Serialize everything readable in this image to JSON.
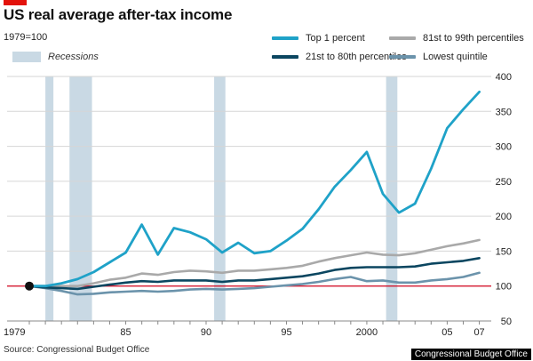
{
  "header": {
    "title": "US real average after-tax income",
    "subtitle": "1979=100"
  },
  "legend": {
    "recessions_label": "Recessions",
    "recession_color": "#c9d9e4"
  },
  "footer": {
    "source": "Source: Congressional Budget Office",
    "credit": "Congressional Budget Office"
  },
  "chart_data": {
    "type": "line",
    "title": "US real average after-tax income",
    "subtitle": "1979=100",
    "xlabel": "",
    "ylabel": "",
    "xlim": [
      1979,
      2007.3
    ],
    "ylim": [
      50,
      400
    ],
    "yticks": [
      50,
      100,
      150,
      200,
      250,
      300,
      350,
      400
    ],
    "xticks": [
      {
        "value": 1979,
        "label": "1979"
      },
      {
        "value": 1985,
        "label": "85"
      },
      {
        "value": 1990,
        "label": "90"
      },
      {
        "value": 1995,
        "label": "95"
      },
      {
        "value": 2000,
        "label": "2000"
      },
      {
        "value": 2005,
        "label": "05"
      },
      {
        "value": 2007,
        "label": "07"
      }
    ],
    "recessions": [
      [
        1980.0,
        1980.5
      ],
      [
        1981.5,
        1982.9
      ],
      [
        1990.5,
        1991.2
      ],
      [
        2001.2,
        2001.9
      ]
    ],
    "start_marker": {
      "x": 1979,
      "y": 100
    },
    "x": [
      1979,
      1980,
      1981,
      1982,
      1983,
      1984,
      1985,
      1986,
      1987,
      1988,
      1989,
      1990,
      1991,
      1992,
      1993,
      1994,
      1995,
      1996,
      1997,
      1998,
      1999,
      2000,
      2001,
      2002,
      2003,
      2004,
      2005,
      2006,
      2007
    ],
    "series": [
      {
        "name": "Top 1 percent",
        "color": "#1fa2c8",
        "width": 2.8,
        "values": [
          100,
          100,
          104,
          110,
          120,
          134,
          148,
          188,
          145,
          183,
          177,
          167,
          148,
          162,
          147,
          150,
          165,
          182,
          210,
          242,
          266,
          292,
          232,
          205,
          218,
          268,
          326,
          353,
          378
        ]
      },
      {
        "name": "81st to 99th percentiles",
        "color": "#a9a9a9",
        "width": 2.6,
        "values": [
          100,
          99,
          100,
          100,
          104,
          109,
          112,
          118,
          116,
          120,
          122,
          121,
          119,
          122,
          122,
          124,
          126,
          129,
          135,
          140,
          144,
          148,
          145,
          144,
          147,
          152,
          157,
          161,
          166
        ]
      },
      {
        "name": "21st to 80th percentiles",
        "color": "#0b4660",
        "width": 2.6,
        "values": [
          100,
          98,
          97,
          96,
          99,
          102,
          105,
          107,
          106,
          108,
          108,
          108,
          106,
          108,
          108,
          110,
          112,
          114,
          118,
          123,
          126,
          127,
          127,
          127,
          128,
          132,
          134,
          136,
          140
        ]
      },
      {
        "name": "Lowest quintile",
        "color": "#6b93ab",
        "width": 2.6,
        "values": [
          100,
          97,
          93,
          88,
          89,
          91,
          92,
          93,
          92,
          93,
          95,
          96,
          95,
          96,
          97,
          99,
          101,
          103,
          106,
          110,
          113,
          107,
          108,
          105,
          105,
          108,
          110,
          113,
          119
        ]
      }
    ]
  }
}
